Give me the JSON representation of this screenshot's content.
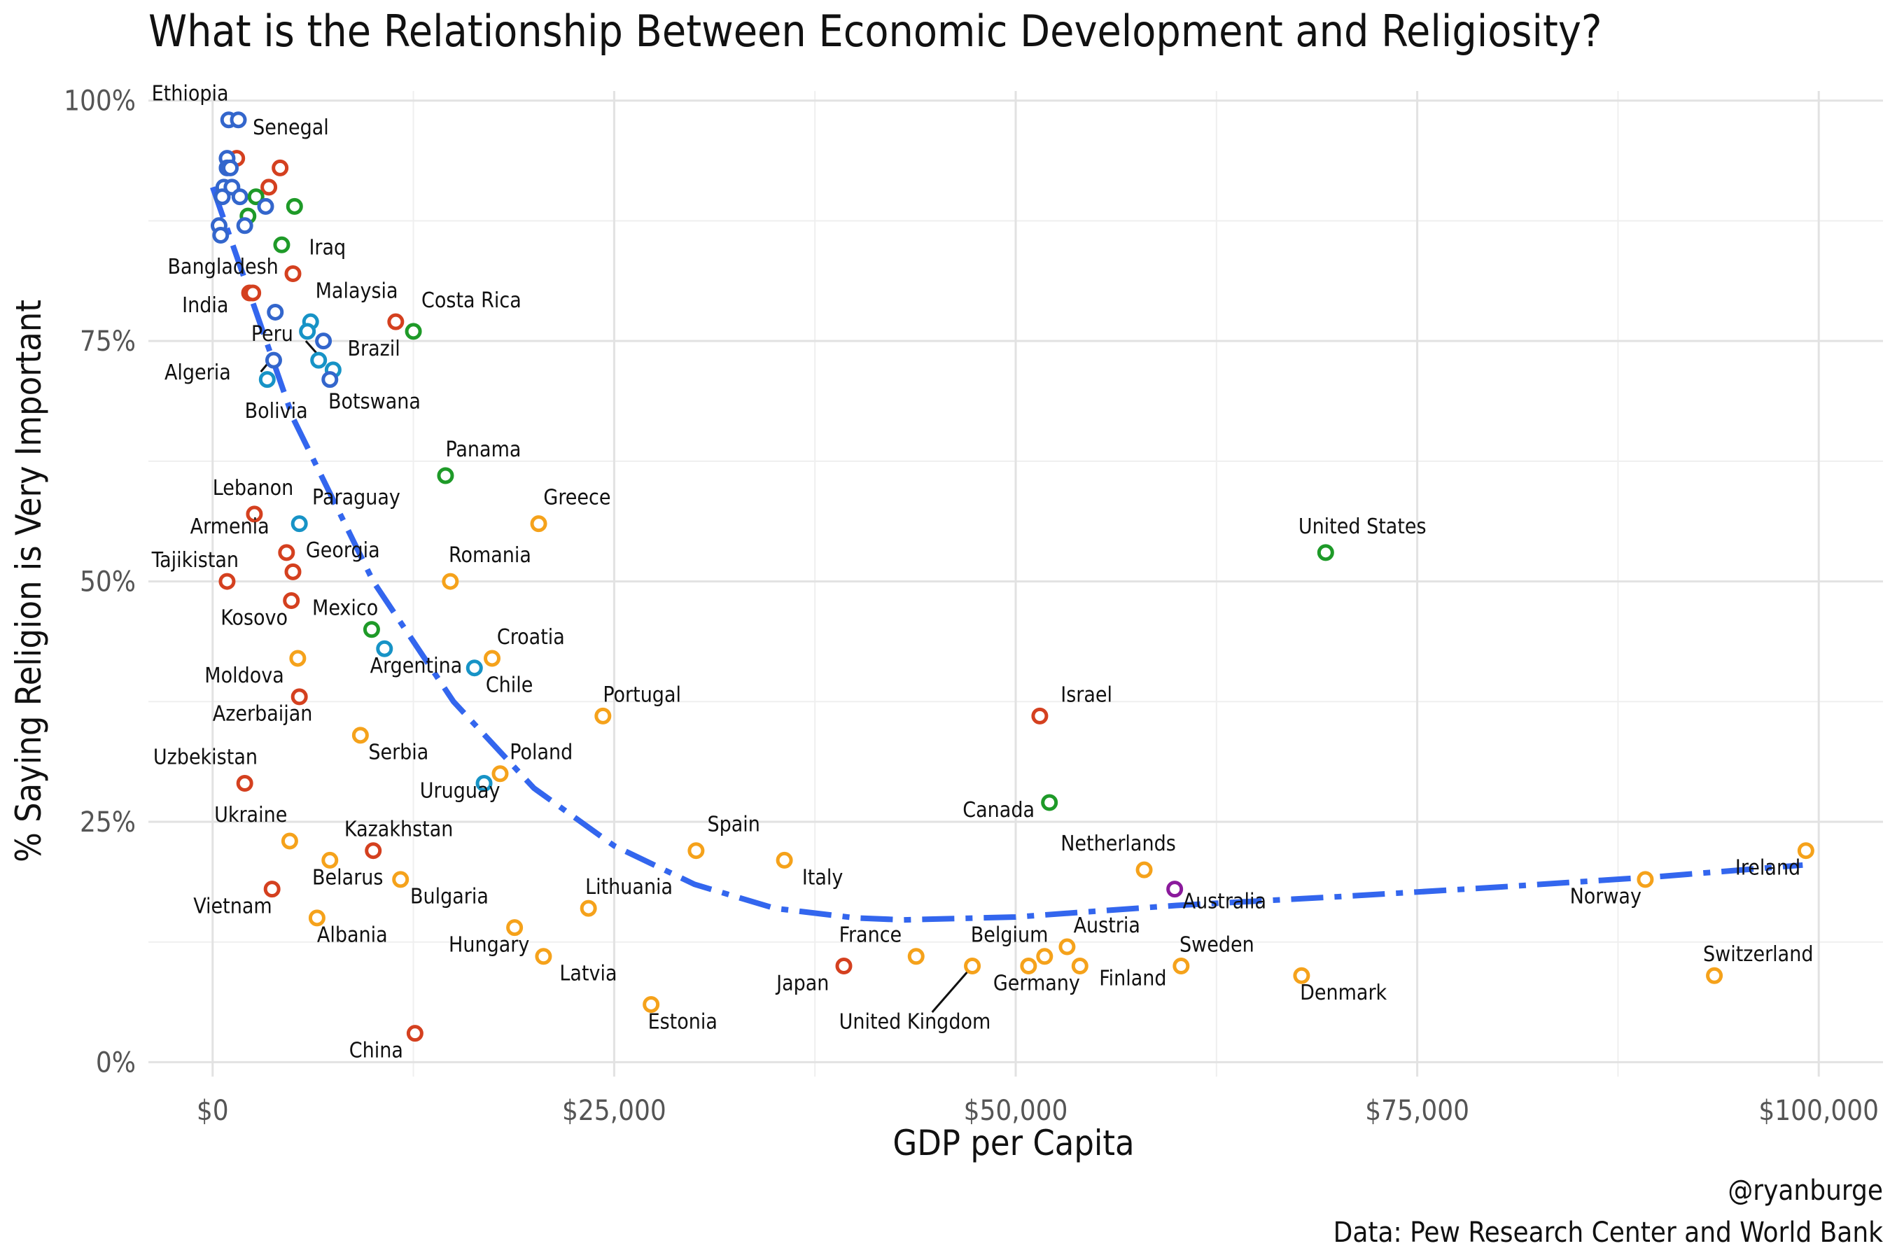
{
  "chart_data": {
    "type": "scatter",
    "title": "What is the Relationship Between Economic Development and Religiosity?",
    "xlabel": "GDP per Capita",
    "ylabel": "% Saying Religion is Very Important",
    "xlim": [
      -4000,
      104000
    ],
    "ylim": [
      -1.5,
      101
    ],
    "x_ticks": [
      0,
      25000,
      50000,
      75000,
      100000
    ],
    "x_tick_labels": [
      "$0",
      "$25,000",
      "$50,000",
      "$75,000",
      "$100,000"
    ],
    "y_ticks": [
      0,
      25,
      50,
      75,
      100
    ],
    "y_tick_labels": [
      "0%",
      "25%",
      "50%",
      "75%",
      "100%"
    ],
    "grid": true,
    "legend": "none",
    "caption": [
      "@ryanburge",
      "Data: Pew Research Center and World Bank"
    ],
    "colors": {
      "blue": "#3366cc",
      "red": "#d4401f",
      "green": "#1e9a28",
      "teal": "#1793c6",
      "orange": "#f5a21b",
      "purple": "#8b1a9c",
      "trend": "#3366ee"
    },
    "trend": {
      "style": "dashed",
      "x": [
        0,
        5000,
        10000,
        15000,
        20000,
        25000,
        30000,
        35000,
        40000,
        43000,
        50000,
        55000,
        60000,
        70000,
        80000,
        90000,
        99000
      ],
      "y": [
        91,
        67,
        50,
        37.5,
        28.5,
        22.5,
        18.5,
        16,
        15,
        14.8,
        15.1,
        15.7,
        16.3,
        17.2,
        18.2,
        19.3,
        20.5
      ]
    },
    "points": [
      {
        "label": "Ethiopia",
        "x": 1000,
        "y": 98,
        "color": "blue"
      },
      {
        "label": "",
        "x": 1600,
        "y": 98,
        "color": "blue"
      },
      {
        "label": "",
        "x": 1500,
        "y": 94,
        "color": "red"
      },
      {
        "label": "",
        "x": 900,
        "y": 94,
        "color": "blue"
      },
      {
        "label": "Senegal",
        "x": 4200,
        "y": 93,
        "color": "red"
      },
      {
        "label": "",
        "x": 900,
        "y": 93,
        "color": "blue"
      },
      {
        "label": "",
        "x": 1100,
        "y": 93,
        "color": "blue"
      },
      {
        "label": "",
        "x": 700,
        "y": 91,
        "color": "blue"
      },
      {
        "label": "",
        "x": 1200,
        "y": 91,
        "color": "blue"
      },
      {
        "label": "",
        "x": 3500,
        "y": 91,
        "color": "red"
      },
      {
        "label": "",
        "x": 600,
        "y": 90,
        "color": "blue"
      },
      {
        "label": "",
        "x": 1700,
        "y": 90,
        "color": "blue"
      },
      {
        "label": "",
        "x": 2700,
        "y": 90,
        "color": "green"
      },
      {
        "label": "",
        "x": 3300,
        "y": 89,
        "color": "blue"
      },
      {
        "label": "",
        "x": 5100,
        "y": 89,
        "color": "green"
      },
      {
        "label": "",
        "x": 2200,
        "y": 88,
        "color": "green"
      },
      {
        "label": "",
        "x": 2000,
        "y": 87,
        "color": "blue"
      },
      {
        "label": "",
        "x": 400,
        "y": 87,
        "color": "blue"
      },
      {
        "label": "",
        "x": 500,
        "y": 86,
        "color": "blue"
      },
      {
        "label": "",
        "x": 4300,
        "y": 85,
        "color": "green"
      },
      {
        "label": "Iraq",
        "x": 5000,
        "y": 82,
        "color": "red"
      },
      {
        "label": "Bangladesh",
        "x": 2300,
        "y": 80,
        "color": "red"
      },
      {
        "label": "",
        "x": 2500,
        "y": 80,
        "color": "red"
      },
      {
        "label": "India",
        "x": 3900,
        "y": 78,
        "color": "blue"
      },
      {
        "label": "Malaysia",
        "x": 6100,
        "y": 77,
        "color": "teal"
      },
      {
        "label": "Costa Rica",
        "x": 11400,
        "y": 77,
        "color": "red"
      },
      {
        "label": "",
        "x": 12500,
        "y": 76,
        "color": "green"
      },
      {
        "label": "Peru",
        "x": 5900,
        "y": 76,
        "color": "teal"
      },
      {
        "label": "",
        "x": 6900,
        "y": 75,
        "color": "blue"
      },
      {
        "label": "Brazil",
        "x": 6600,
        "y": 73,
        "color": "teal"
      },
      {
        "label": "Algeria",
        "x": 3800,
        "y": 73,
        "color": "blue"
      },
      {
        "label": "",
        "x": 7500,
        "y": 72,
        "color": "teal"
      },
      {
        "label": "Botswana",
        "x": 7300,
        "y": 71,
        "color": "blue"
      },
      {
        "label": "Bolivia",
        "x": 3400,
        "y": 71,
        "color": "teal"
      },
      {
        "label": "Panama",
        "x": 14500,
        "y": 61,
        "color": "green"
      },
      {
        "label": "Greece",
        "x": 20300,
        "y": 56,
        "color": "orange"
      },
      {
        "label": "Paraguay",
        "x": 5400,
        "y": 56,
        "color": "teal"
      },
      {
        "label": "Lebanon",
        "x": 2600,
        "y": 57,
        "color": "red"
      },
      {
        "label": "Armenia",
        "x": 4600,
        "y": 53,
        "color": "red"
      },
      {
        "label": "Georgia",
        "x": 5000,
        "y": 51,
        "color": "red"
      },
      {
        "label": "United States",
        "x": 69300,
        "y": 53,
        "color": "green"
      },
      {
        "label": "Tajikistan",
        "x": 900,
        "y": 50,
        "color": "red"
      },
      {
        "label": "Romania",
        "x": 14800,
        "y": 50,
        "color": "orange"
      },
      {
        "label": "Kosovo",
        "x": 4900,
        "y": 48,
        "color": "red"
      },
      {
        "label": "Mexico",
        "x": 9900,
        "y": 45,
        "color": "green"
      },
      {
        "label": "Argentina",
        "x": 10700,
        "y": 43,
        "color": "teal"
      },
      {
        "label": "Croatia",
        "x": 17400,
        "y": 42,
        "color": "orange"
      },
      {
        "label": "",
        "x": 5300,
        "y": 42,
        "color": "orange"
      },
      {
        "label": "Chile",
        "x": 16300,
        "y": 41,
        "color": "teal"
      },
      {
        "label": "Moldova",
        "x": 5400,
        "y": 38,
        "color": "red"
      },
      {
        "label": "Portugal",
        "x": 24300,
        "y": 36,
        "color": "orange"
      },
      {
        "label": "Israel",
        "x": 51500,
        "y": 36,
        "color": "red"
      },
      {
        "label": "Serbia",
        "x": 9200,
        "y": 34,
        "color": "orange"
      },
      {
        "label": "Poland",
        "x": 17900,
        "y": 30,
        "color": "orange"
      },
      {
        "label": "Uruguay",
        "x": 16900,
        "y": 29,
        "color": "teal"
      },
      {
        "label": "Uzbekistan",
        "x": 2000,
        "y": 29,
        "color": "red"
      },
      {
        "label": "Canada",
        "x": 52100,
        "y": 27,
        "color": "green"
      },
      {
        "label": "Ukraine",
        "x": 4800,
        "y": 23,
        "color": "orange"
      },
      {
        "label": "Kazakhstan",
        "x": 10000,
        "y": 22,
        "color": "red"
      },
      {
        "label": "Spain",
        "x": 30100,
        "y": 22,
        "color": "orange"
      },
      {
        "label": "Ireland",
        "x": 99200,
        "y": 22,
        "color": "orange"
      },
      {
        "label": "Belarus",
        "x": 7300,
        "y": 21,
        "color": "orange"
      },
      {
        "label": "Italy",
        "x": 35600,
        "y": 21,
        "color": "orange"
      },
      {
        "label": "Netherlands",
        "x": 58000,
        "y": 20,
        "color": "orange"
      },
      {
        "label": "Norway",
        "x": 89200,
        "y": 19,
        "color": "orange"
      },
      {
        "label": "Bulgaria",
        "x": 11700,
        "y": 19,
        "color": "orange"
      },
      {
        "label": "Vietnam",
        "x": 3700,
        "y": 18,
        "color": "red"
      },
      {
        "label": "Australia",
        "x": 59900,
        "y": 18,
        "color": "purple"
      },
      {
        "label": "Lithuania",
        "x": 23400,
        "y": 16,
        "color": "orange"
      },
      {
        "label": "Albania",
        "x": 6500,
        "y": 15,
        "color": "orange"
      },
      {
        "label": "Hungary",
        "x": 18800,
        "y": 14,
        "color": "orange"
      },
      {
        "label": "Austria",
        "x": 53200,
        "y": 12,
        "color": "orange"
      },
      {
        "label": "Latvia",
        "x": 20600,
        "y": 11,
        "color": "orange"
      },
      {
        "label": "",
        "x": 43800,
        "y": 11,
        "color": "orange"
      },
      {
        "label": "",
        "x": 51800,
        "y": 11,
        "color": "orange"
      },
      {
        "label": "France",
        "x": 39300,
        "y": 10,
        "color": "red"
      },
      {
        "label": "United Kingdom",
        "x": 47300,
        "y": 10,
        "color": "orange"
      },
      {
        "label": "Belgium",
        "x": 50800,
        "y": 10,
        "color": "orange"
      },
      {
        "label": "Germany",
        "x": 54000,
        "y": 10,
        "color": "orange"
      },
      {
        "label": "Sweden",
        "x": 60300,
        "y": 10,
        "color": "orange"
      },
      {
        "label": "Denmark",
        "x": 67800,
        "y": 9,
        "color": "orange"
      },
      {
        "label": "Switzerland",
        "x": 93500,
        "y": 9,
        "color": "orange"
      },
      {
        "label": "Estonia",
        "x": 27300,
        "y": 6,
        "color": "orange"
      },
      {
        "label": "China",
        "x": 12600,
        "y": 3,
        "color": "red"
      }
    ],
    "annotations": [
      {
        "text": "Ethiopia",
        "x": -3800,
        "y": 100
      },
      {
        "text": "Senegal",
        "x": 2500,
        "y": 96.5
      },
      {
        "text": "Iraq",
        "x": 6000,
        "y": 84
      },
      {
        "text": "Bangladesh",
        "x": -2800,
        "y": 82
      },
      {
        "text": "India",
        "x": -1900,
        "y": 78
      },
      {
        "text": "Malaysia",
        "x": 6400,
        "y": 79.5
      },
      {
        "text": "Costa Rica",
        "x": 13000,
        "y": 78.5
      },
      {
        "text": "Peru",
        "x": 2400,
        "y": 75
      },
      {
        "text": "Brazil",
        "x": 8400,
        "y": 73.5
      },
      {
        "text": "Algeria",
        "x": -3000,
        "y": 71
      },
      {
        "text": "Botswana",
        "x": 7200,
        "y": 68
      },
      {
        "text": "Bolivia",
        "x": 2000,
        "y": 67
      },
      {
        "text": "Panama",
        "x": 14500,
        "y": 63
      },
      {
        "text": "Greece",
        "x": 20600,
        "y": 58
      },
      {
        "text": "Paraguay",
        "x": 6200,
        "y": 58
      },
      {
        "text": "Lebanon",
        "x": 0,
        "y": 59
      },
      {
        "text": "Armenia",
        "x": -1400,
        "y": 55
      },
      {
        "text": "Georgia",
        "x": 5800,
        "y": 52.5
      },
      {
        "text": "United States",
        "x": 67600,
        "y": 55
      },
      {
        "text": "Tajikistan",
        "x": -3800,
        "y": 51.5
      },
      {
        "text": "Romania",
        "x": 14700,
        "y": 52
      },
      {
        "text": "Kosovo",
        "x": 500,
        "y": 45.5
      },
      {
        "text": "Mexico",
        "x": 6200,
        "y": 46.5
      },
      {
        "text": "Argentina",
        "x": 9800,
        "y": 40.5
      },
      {
        "text": "Croatia",
        "x": 17700,
        "y": 43.5
      },
      {
        "text": "Chile",
        "x": 17000,
        "y": 38.5
      },
      {
        "text": "Moldova",
        "x": -500,
        "y": 39.5
      },
      {
        "text": "Portugal",
        "x": 24300,
        "y": 37.5
      },
      {
        "text": "Israel",
        "x": 52800,
        "y": 37.5
      },
      {
        "text": "Azerbaijan",
        "x": 0,
        "y": 35.5
      },
      {
        "text": "Serbia",
        "x": 9700,
        "y": 31.5
      },
      {
        "text": "Poland",
        "x": 18500,
        "y": 31.5
      },
      {
        "text": "Uruguay",
        "x": 12900,
        "y": 27.5
      },
      {
        "text": "Uzbekistan",
        "x": -3700,
        "y": 31
      },
      {
        "text": "Canada",
        "x": 46700,
        "y": 25.5
      },
      {
        "text": "Ukraine",
        "x": 100,
        "y": 25
      },
      {
        "text": "Kazakhstan",
        "x": 8200,
        "y": 23.5
      },
      {
        "text": "Spain",
        "x": 30800,
        "y": 24
      },
      {
        "text": "Ireland",
        "x": 94800,
        "y": 19.5
      },
      {
        "text": "Belarus",
        "x": 6200,
        "y": 18.5
      },
      {
        "text": "Italy",
        "x": 36700,
        "y": 18.5
      },
      {
        "text": "Netherlands",
        "x": 52800,
        "y": 22
      },
      {
        "text": "Norway",
        "x": 84500,
        "y": 16.5
      },
      {
        "text": "Bulgaria",
        "x": 12300,
        "y": 16.5
      },
      {
        "text": "Vietnam",
        "x": -1200,
        "y": 15.5
      },
      {
        "text": "Australia",
        "x": 60400,
        "y": 16
      },
      {
        "text": "Lithuania",
        "x": 23200,
        "y": 17.5
      },
      {
        "text": "Albania",
        "x": 6500,
        "y": 12.5
      },
      {
        "text": "Hungary",
        "x": 14700,
        "y": 11.5
      },
      {
        "text": "Austria",
        "x": 53600,
        "y": 13.5
      },
      {
        "text": "Latvia",
        "x": 21600,
        "y": 8.5
      },
      {
        "text": "France",
        "x": 39000,
        "y": 12.5
      },
      {
        "text": "Belgium",
        "x": 47200,
        "y": 12.5
      },
      {
        "text": "Sweden",
        "x": 60200,
        "y": 11.5
      },
      {
        "text": "Denmark",
        "x": 67700,
        "y": 6.5
      },
      {
        "text": "Switzerland",
        "x": 92800,
        "y": 10.5
      },
      {
        "text": "Japan",
        "x": 35100,
        "y": 7.5
      },
      {
        "text": "Germany",
        "x": 48600,
        "y": 7.5
      },
      {
        "text": "Finland",
        "x": 55200,
        "y": 8
      },
      {
        "text": "Estonia",
        "x": 27100,
        "y": 3.5
      },
      {
        "text": "United Kingdom",
        "x": 39000,
        "y": 3.5
      },
      {
        "text": "China",
        "x": 8500,
        "y": 0.5
      }
    ],
    "leader_lines": [
      {
        "from": [
          5800,
          75
        ],
        "to": [
          6600,
          73.5
        ]
      },
      {
        "from": [
          3000,
          71.8
        ],
        "to": [
          3600,
          73
        ]
      },
      {
        "from": [
          44800,
          5.2
        ],
        "to": [
          47100,
          9.6
        ]
      }
    ]
  }
}
